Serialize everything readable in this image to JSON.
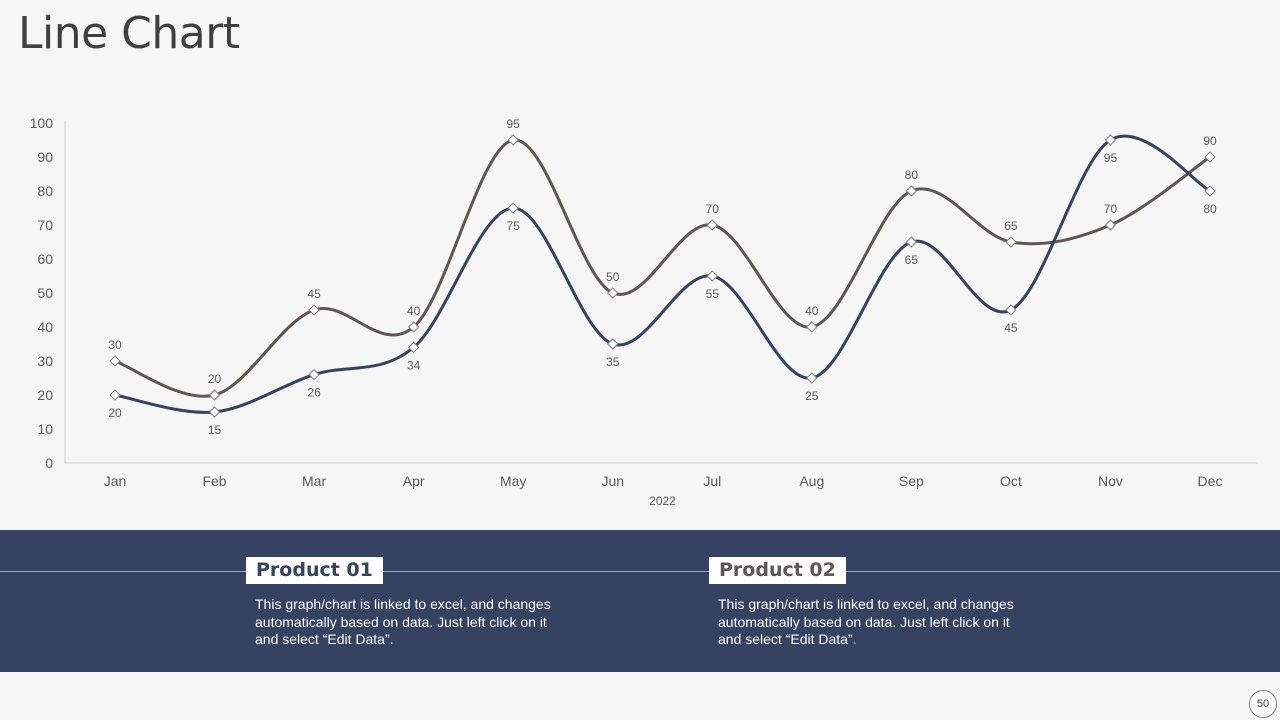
{
  "title": "Line Chart",
  "products": [
    {
      "label": "Product 01",
      "description": "This graph/chart is linked to excel, and changes automatically based on data. Just left click on it and select “Edit Data”."
    },
    {
      "label": "Product 02",
      "description": "This graph/chart is linked to excel, and changes automatically based on data. Just left click on it and select “Edit Data”."
    }
  ],
  "page_number": "50",
  "colors": {
    "product01": "#354261",
    "product02": "#5f5650",
    "band": "#354261"
  },
  "chart_data": {
    "type": "line",
    "categories": [
      "Jan",
      "Feb",
      "Mar",
      "Apr",
      "May",
      "Jun",
      "Jul",
      "Aug",
      "Sep",
      "Oct",
      "Nov",
      "Dec"
    ],
    "xlabel": "2022",
    "ylabel": "",
    "ylim": [
      0,
      100
    ],
    "yticks": [
      0,
      10,
      20,
      30,
      40,
      50,
      60,
      70,
      80,
      90,
      100
    ],
    "grid": false,
    "series": [
      {
        "name": "Product 01",
        "values": [
          20,
          15,
          26,
          34,
          75,
          35,
          55,
          25,
          65,
          45,
          95,
          80
        ],
        "color": "#354261",
        "label_position": "below"
      },
      {
        "name": "Product 02",
        "values": [
          30,
          20,
          45,
          40,
          95,
          50,
          70,
          40,
          80,
          65,
          70,
          90
        ],
        "color": "#5f5650",
        "label_position": "above"
      }
    ]
  }
}
